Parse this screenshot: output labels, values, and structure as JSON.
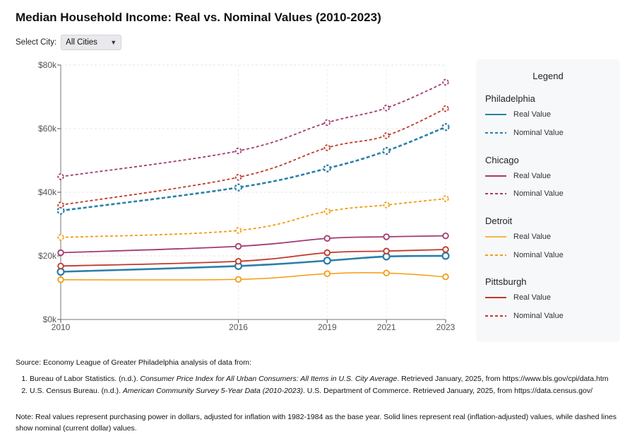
{
  "title": "Median Household Income: Real vs. Nominal Values (2010-2023)",
  "controls": {
    "select_label": "Select City:",
    "selected": "All Cities"
  },
  "chart_data": {
    "type": "line",
    "x": [
      2010,
      2016,
      2019,
      2021,
      2023
    ],
    "ylim": [
      0,
      80000
    ],
    "yticks": [
      "$0k",
      "$20k",
      "$40k",
      "$60k",
      "$80k"
    ],
    "xticks": [
      "2010",
      "2016",
      "2019",
      "2021",
      "2023"
    ],
    "series": [
      {
        "city": "Philadelphia",
        "kind": "Real Value",
        "color": "#2a7fa8",
        "dashed": false,
        "values": [
          15000,
          16800,
          18500,
          19800,
          20000
        ]
      },
      {
        "city": "Philadelphia",
        "kind": "Nominal Value",
        "color": "#2a7fa8",
        "dashed": true,
        "values": [
          34200,
          41500,
          47500,
          53000,
          60500
        ]
      },
      {
        "city": "Chicago",
        "kind": "Real Value",
        "color": "#a23b72",
        "dashed": false,
        "values": [
          21000,
          23000,
          25500,
          26000,
          26300
        ]
      },
      {
        "city": "Chicago",
        "kind": "Nominal Value",
        "color": "#a23b72",
        "dashed": true,
        "values": [
          44900,
          53000,
          61900,
          66500,
          74600
        ]
      },
      {
        "city": "Detroit",
        "kind": "Real Value",
        "color": "#f39c12",
        "dashed": false,
        "values": [
          12500,
          12600,
          14400,
          14600,
          13400
        ]
      },
      {
        "city": "Detroit",
        "kind": "Nominal Value",
        "color": "#f39c12",
        "dashed": true,
        "values": [
          25800,
          28000,
          34000,
          36000,
          38000
        ]
      },
      {
        "city": "Pittsburgh",
        "kind": "Real Value",
        "color": "#c0392b",
        "dashed": false,
        "values": [
          16800,
          18300,
          21000,
          21500,
          22000
        ]
      },
      {
        "city": "Pittsburgh",
        "kind": "Nominal Value",
        "color": "#c0392b",
        "dashed": true,
        "values": [
          36000,
          44700,
          54000,
          57800,
          66300
        ]
      }
    ]
  },
  "legend": {
    "title": "Legend",
    "groups": [
      {
        "city": "Philadelphia",
        "color": "#2a7fa8",
        "real": "Real Value",
        "nominal": "Nominal Value"
      },
      {
        "city": "Chicago",
        "color": "#a23b72",
        "real": "Real Value",
        "nominal": "Nominal Value"
      },
      {
        "city": "Detroit",
        "color": "#f39c12",
        "real": "Real Value",
        "nominal": "Nominal Value"
      },
      {
        "city": "Pittsburgh",
        "color": "#c0392b",
        "real": "Real Value",
        "nominal": "Nominal Value"
      }
    ]
  },
  "source": {
    "heading": "Source: Economy League of Greater Philadelphia analysis of data from:",
    "ref1": {
      "pre": "Bureau of Labor Statistics. (n.d.). ",
      "italic": "Consumer Price Index for All Urban Consumers: All Items in U.S. City Average",
      "post": ". Retrieved January, 2025, from https://www.bls.gov/cpi/data.htm"
    },
    "ref2": {
      "pre": "U.S. Census Bureau. (n.d.). ",
      "italic": "American Community Survey 5-Year Data (2010-2023)",
      "post": ". U.S. Department of Commerce. Retrieved January, 2025, from https://data.census.gov/"
    }
  },
  "note": "Note: Real values represent purchasing power in dollars, adjusted for inflation with 1982-1984 as the base year. Solid lines represent real (inflation-adjusted) values, while dashed lines show nominal (current dollar) values."
}
